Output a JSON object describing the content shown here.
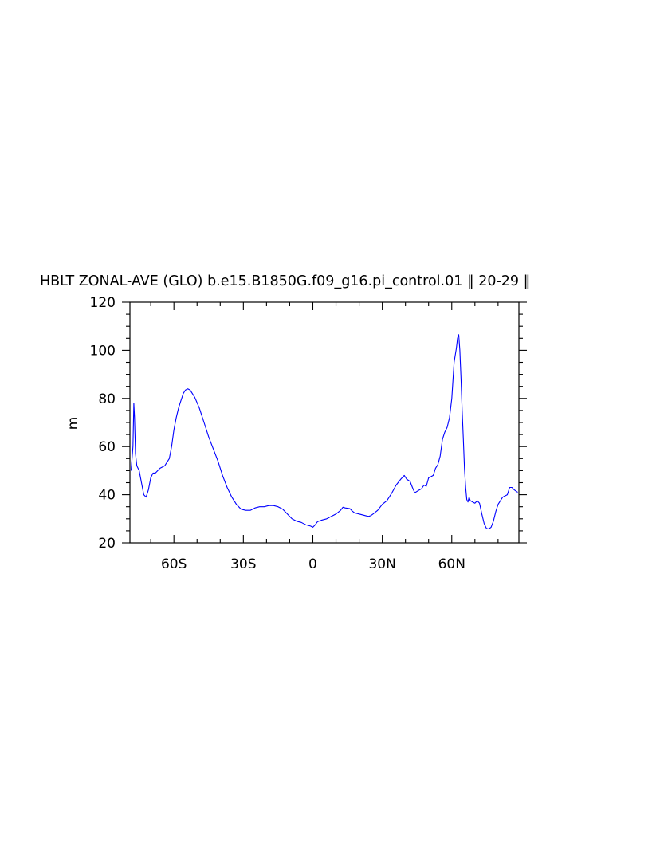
{
  "chart_data": {
    "type": "line",
    "title": "HBLT ZONAL-AVE (GLO) b.e15.B1850G.f09_g16.pi_control.01 ‖ 20-29 ‖",
    "xlabel": "",
    "ylabel": "m",
    "xlim": [
      -79,
      89
    ],
    "ylim": [
      20,
      120
    ],
    "x_major_ticks": [
      -60,
      -30,
      0,
      30,
      60
    ],
    "x_tick_labels": [
      "60S",
      "30S",
      "0",
      "30N",
      "60N"
    ],
    "x_minor_step": 10,
    "y_major_ticks": [
      20,
      40,
      60,
      80,
      100,
      120
    ],
    "y_tick_labels": [
      "20",
      "40",
      "60",
      "80",
      "100",
      "120"
    ],
    "y_minor_step": 5,
    "grid": false,
    "series": [
      {
        "color": "#0000ff",
        "x": [
          -78.5,
          -77.7,
          -77.3,
          -77.0,
          -76.6,
          -76.0,
          -75.0,
          -74.0,
          -73.0,
          -72.0,
          -71.0,
          -70.0,
          -69.0,
          -68.0,
          -66.0,
          -64.0,
          -62.0,
          -61.0,
          -60.0,
          -59.0,
          -58.0,
          -57.0,
          -56.5,
          -56.0,
          -55.0,
          -54.0,
          -53.0,
          -51.0,
          -49.0,
          -47.0,
          -45.0,
          -43.0,
          -41.0,
          -39.0,
          -37.0,
          -35.0,
          -33.0,
          -31.0,
          -29.0,
          -27.0,
          -25.0,
          -23.0,
          -21.0,
          -19.0,
          -17.0,
          -15.0,
          -13.0,
          -11.0,
          -9.0,
          -7.0,
          -5.0,
          -3.0,
          -1.0,
          0.0,
          1.0,
          2.0,
          4.0,
          6.0,
          8.0,
          10.0,
          12.0,
          13.0,
          14.0,
          16.0,
          17.0,
          18.0,
          20.0,
          22.0,
          24.0,
          25.0,
          26.0,
          28.0,
          30.0,
          32.0,
          34.0,
          36.0,
          38.0,
          39.5,
          40.5,
          42.0,
          43.0,
          44.0,
          46.0,
          47.0,
          48.0,
          49.0,
          50.0,
          51.0,
          52.0,
          53.0,
          54.0,
          55.0,
          56.0,
          57.0,
          58.0,
          59.0,
          60.0,
          61.0,
          62.0,
          62.5,
          63.0,
          63.5,
          64.0,
          64.5,
          65.0,
          65.5,
          66.0,
          66.5,
          67.0,
          67.5,
          68.0,
          69.0,
          70.0,
          71.0,
          72.0,
          73.0,
          74.0,
          75.0,
          76.0,
          77.0,
          78.0,
          79.0,
          80.0,
          82.0,
          84.0,
          85.0,
          86.0,
          87.0,
          88.5
        ],
        "y": [
          50,
          60,
          78,
          72,
          57,
          52,
          50,
          45,
          40,
          39,
          42,
          47,
          49,
          49,
          51,
          52,
          55,
          60,
          67,
          72,
          76,
          79,
          80.5,
          82,
          83.5,
          84,
          83.5,
          80.5,
          76,
          70,
          64,
          59,
          54,
          48,
          43,
          39,
          36,
          34,
          33.5,
          33.5,
          34.5,
          35,
          35,
          35.5,
          35.5,
          35,
          34,
          32,
          30,
          29,
          28.5,
          27.5,
          27,
          26.5,
          27.5,
          28.8,
          29.5,
          30,
          31,
          32,
          33.5,
          34.8,
          34.5,
          34.2,
          33.2,
          32.5,
          32,
          31.5,
          31,
          31.3,
          32,
          33.5,
          36,
          37.5,
          40.5,
          44,
          46.5,
          48,
          46.5,
          45.5,
          43,
          40.8,
          42,
          42.5,
          44,
          43.5,
          47,
          47.5,
          48,
          51,
          52.5,
          56,
          63,
          66,
          68,
          72,
          80,
          95,
          101,
          105,
          106.5,
          100,
          88,
          75,
          63,
          51,
          43,
          38,
          37,
          39,
          37.5,
          37,
          36.5,
          37.5,
          36.5,
          32,
          28,
          26,
          25.8,
          26.5,
          29,
          33,
          36,
          39,
          40,
          43,
          43,
          42,
          41
        ]
      }
    ]
  }
}
